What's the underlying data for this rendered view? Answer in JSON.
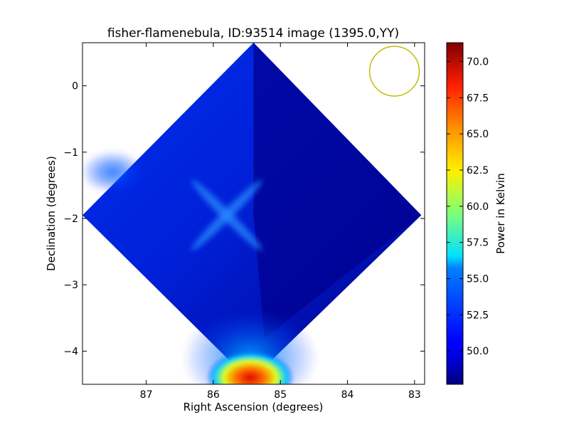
{
  "chart_data": {
    "type": "heatmap",
    "title": "fisher-flamenebula, ID:93514 image (1395.0,YY)",
    "xlabel": "Right Ascension (degrees)",
    "ylabel": "Declination (degrees)",
    "xlim": [
      87.95,
      82.85
    ],
    "ylim": [
      -4.5,
      0.65
    ],
    "x_ticks": [
      87,
      86,
      85,
      84,
      83
    ],
    "y_ticks": [
      0,
      -1,
      -2,
      -3,
      -4
    ],
    "colorbar": {
      "label": "Power in Kelvin",
      "range": [
        47.7,
        71.3
      ],
      "ticks": [
        "50.0",
        "52.5",
        "55.0",
        "57.5",
        "60.0",
        "62.5",
        "65.0",
        "67.5",
        "70.0"
      ],
      "tick_values": [
        50.0,
        52.5,
        55.0,
        57.5,
        60.0,
        62.5,
        65.0,
        67.5,
        70.0
      ],
      "colormap": "jet"
    },
    "map_region": {
      "shape": "rotated-square",
      "top": {
        "ra": 85.4,
        "dec": 0.65
      },
      "right": {
        "ra": 82.9,
        "dec": -1.95
      },
      "bottom": {
        "ra": 85.45,
        "dec": -4.45
      },
      "left": {
        "ra": 87.95,
        "dec": -1.95
      }
    },
    "features": [
      {
        "kind": "background",
        "ra": 85.4,
        "dec": -1.95,
        "value": 49.5
      },
      {
        "kind": "hot-spot",
        "ra": 85.45,
        "dec": -4.4,
        "value": 70.5
      },
      {
        "kind": "warm-region",
        "ra": 85.45,
        "dec": -4.1,
        "value": 56.5
      },
      {
        "kind": "cross-pattern",
        "ra": 85.9,
        "dec": -1.95,
        "value": 52.5
      },
      {
        "kind": "edge-glow",
        "ra": 87.5,
        "dec": -1.3,
        "value": 51.5
      }
    ],
    "beam_circle": {
      "ra": 83.3,
      "dec": 0.22,
      "radius_deg": 0.37,
      "color": "#bfbf00"
    }
  }
}
